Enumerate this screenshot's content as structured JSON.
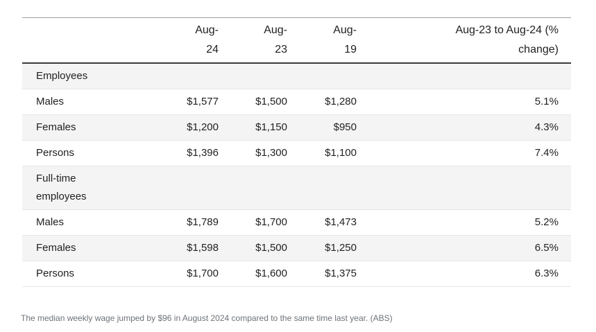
{
  "table": {
    "header": {
      "col_label": "",
      "col_aug24": "Aug-\n24",
      "col_aug23": "Aug-\n23",
      "col_aug19": "Aug-\n19",
      "col_change": "Aug-23 to Aug-24 (%\nchange)"
    },
    "rows": [
      {
        "label": "Employees",
        "section": true,
        "shaded": true,
        "values": [
          "",
          "",
          "",
          ""
        ]
      },
      {
        "label": "Males",
        "section": false,
        "shaded": false,
        "values": [
          "$1,577",
          "$1,500",
          "$1,280",
          "5.1%"
        ]
      },
      {
        "label": "Females",
        "section": false,
        "shaded": true,
        "values": [
          "$1,200",
          "$1,150",
          "$950",
          "4.3%"
        ]
      },
      {
        "label": "Persons",
        "section": false,
        "shaded": false,
        "values": [
          "$1,396",
          "$1,300",
          "$1,100",
          "7.4%"
        ]
      },
      {
        "label": "Full-time\nemployees",
        "section": true,
        "shaded": true,
        "values": [
          "",
          "",
          "",
          ""
        ]
      },
      {
        "label": "Males",
        "section": false,
        "shaded": false,
        "values": [
          "$1,789",
          "$1,700",
          "$1,473",
          "5.2%"
        ]
      },
      {
        "label": "Females",
        "section": false,
        "shaded": true,
        "values": [
          "$1,598",
          "$1,500",
          "$1,250",
          "6.5%"
        ]
      },
      {
        "label": "Persons",
        "section": false,
        "shaded": false,
        "values": [
          "$1,700",
          "$1,600",
          "$1,375",
          "6.3%"
        ]
      }
    ]
  },
  "caption": "The median weekly wage jumped by $96 in August 2024 compared to the same time last year. (ABS)",
  "colors": {
    "shaded_row": "#f4f4f4",
    "top_border": "#9e9e9e",
    "header_border": "#3a3a3a",
    "row_border": "#e6e6e6",
    "text": "#1f1f1f",
    "caption_text": "#6d7278"
  },
  "chart_data": {
    "type": "table",
    "title": "",
    "columns": [
      "",
      "Aug-24",
      "Aug-23",
      "Aug-19",
      "Aug-23 to Aug-24 (% change)"
    ],
    "sections": [
      {
        "name": "Employees",
        "rows": [
          {
            "label": "Males",
            "aug24": 1577,
            "aug23": 1500,
            "aug19": 1280,
            "pct_change": 5.1
          },
          {
            "label": "Females",
            "aug24": 1200,
            "aug23": 1150,
            "aug19": 950,
            "pct_change": 4.3
          },
          {
            "label": "Persons",
            "aug24": 1396,
            "aug23": 1300,
            "aug19": 1100,
            "pct_change": 7.4
          }
        ]
      },
      {
        "name": "Full-time employees",
        "rows": [
          {
            "label": "Males",
            "aug24": 1789,
            "aug23": 1700,
            "aug19": 1473,
            "pct_change": 5.2
          },
          {
            "label": "Females",
            "aug24": 1598,
            "aug23": 1500,
            "aug19": 1250,
            "pct_change": 6.5
          },
          {
            "label": "Persons",
            "aug24": 1700,
            "aug23": 1600,
            "aug19": 1375,
            "pct_change": 6.3
          }
        ]
      }
    ],
    "caption": "The median weekly wage jumped by $96 in August 2024 compared to the same time last year. (ABS)"
  }
}
